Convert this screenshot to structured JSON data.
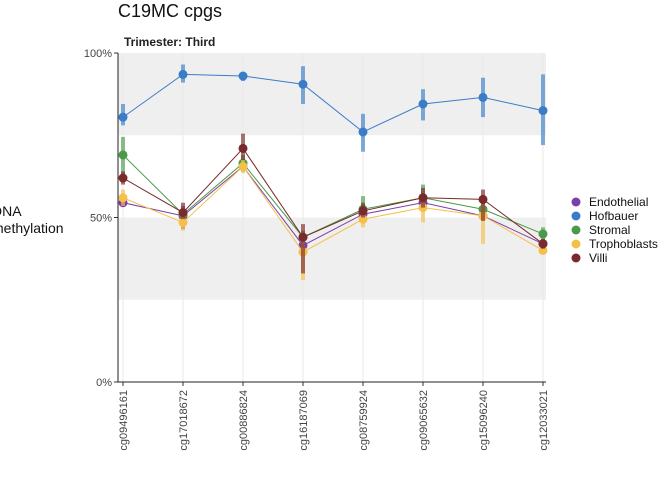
{
  "chart_data": {
    "type": "line",
    "title": "C19MC cpgs",
    "subtitle": "Trimester: Third",
    "ylabel_lines": [
      "DNA",
      "methylation"
    ],
    "xlabel": "",
    "ylim": [
      0,
      1
    ],
    "yticks": [
      {
        "value": 0,
        "label": "0%"
      },
      {
        "value": 0.5,
        "label": "50%"
      },
      {
        "value": 1,
        "label": "100%"
      }
    ],
    "shaded_bands": [
      [
        0.25,
        0.5
      ],
      [
        0.75,
        1.0
      ]
    ],
    "categories": [
      "cg09496161",
      "cg17018672",
      "cg00886824",
      "cg16187069",
      "cg08759924",
      "cg09065632",
      "cg15096240",
      "cg12033021"
    ],
    "legend_position": "right",
    "series": [
      {
        "name": "Endothelial",
        "color": "#7B3FA8",
        "values": [
          0.545,
          0.505,
          0.655,
          0.415,
          0.51,
          0.545,
          0.505,
          0.42
        ],
        "lower": [
          0.535,
          0.465,
          0.645,
          0.4,
          0.5,
          0.53,
          0.49,
          0.41
        ],
        "upper": [
          0.555,
          0.535,
          0.665,
          0.43,
          0.52,
          0.56,
          0.52,
          0.43
        ]
      },
      {
        "name": "Hofbauer",
        "color": "#3A7CC8",
        "values": [
          0.805,
          0.935,
          0.93,
          0.905,
          0.76,
          0.845,
          0.865,
          0.825
        ],
        "lower": [
          0.78,
          0.91,
          0.915,
          0.845,
          0.7,
          0.795,
          0.805,
          0.72
        ],
        "upper": [
          0.845,
          0.965,
          0.94,
          0.96,
          0.815,
          0.89,
          0.925,
          0.935
        ]
      },
      {
        "name": "Stromal",
        "color": "#4A9A4A",
        "values": [
          0.69,
          0.51,
          0.665,
          0.44,
          0.525,
          0.56,
          0.525,
          0.45
        ],
        "lower": [
          0.63,
          0.495,
          0.64,
          0.42,
          0.505,
          0.54,
          0.505,
          0.43
        ],
        "upper": [
          0.745,
          0.525,
          0.69,
          0.46,
          0.565,
          0.6,
          0.545,
          0.47
        ]
      },
      {
        "name": "Trophoblasts",
        "color": "#F5C04A",
        "values": [
          0.56,
          0.485,
          0.655,
          0.395,
          0.495,
          0.53,
          0.505,
          0.4
        ],
        "lower": [
          0.535,
          0.46,
          0.635,
          0.31,
          0.47,
          0.485,
          0.42,
          0.39
        ],
        "upper": [
          0.585,
          0.51,
          0.675,
          0.435,
          0.525,
          0.57,
          0.55,
          0.415
        ]
      },
      {
        "name": "Villi",
        "color": "#7A2A2A",
        "values": [
          0.62,
          0.515,
          0.71,
          0.44,
          0.52,
          0.56,
          0.555,
          0.42
        ],
        "lower": [
          0.6,
          0.495,
          0.675,
          0.33,
          0.5,
          0.53,
          0.49,
          0.405
        ],
        "upper": [
          0.64,
          0.545,
          0.755,
          0.48,
          0.545,
          0.59,
          0.585,
          0.435
        ]
      }
    ]
  }
}
